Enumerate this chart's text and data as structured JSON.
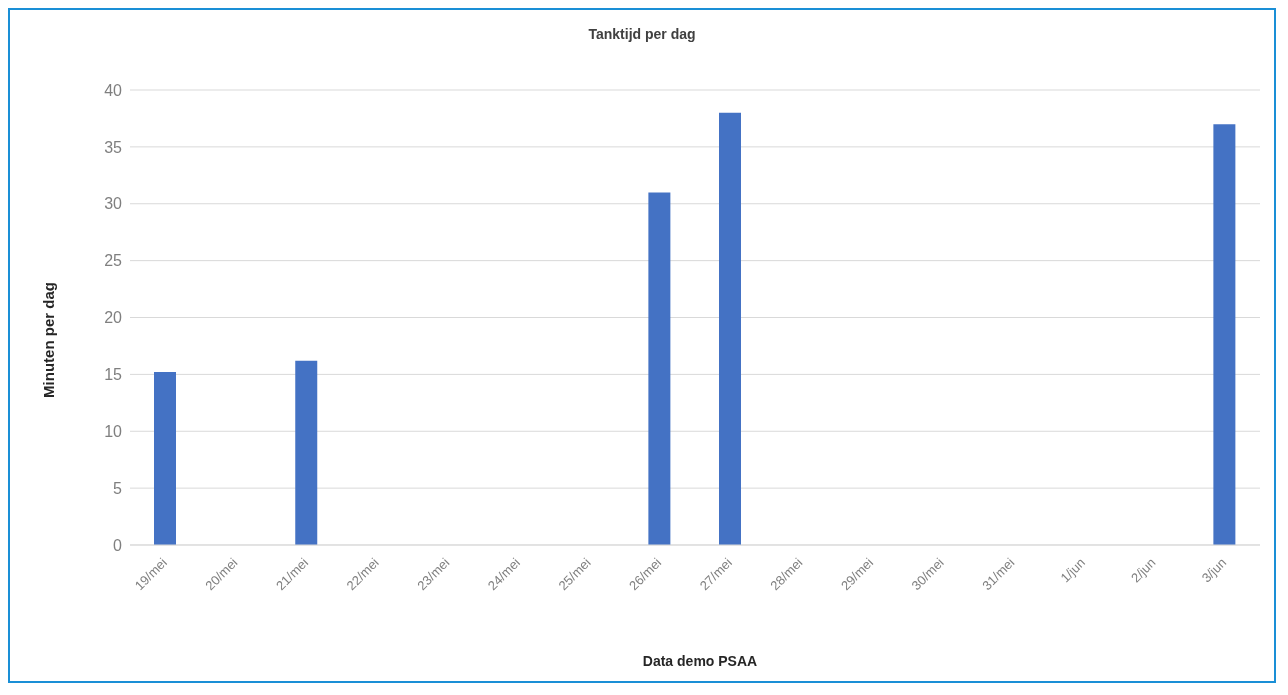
{
  "chart_data": {
    "type": "bar",
    "title": "Tanktijd per dag",
    "xlabel": "Data demo PSAA",
    "ylabel": "Minuten per dag",
    "categories": [
      "19/mei",
      "20/mei",
      "21/mei",
      "22/mei",
      "23/mei",
      "24/mei",
      "25/mei",
      "26/mei",
      "27/mei",
      "28/mei",
      "29/mei",
      "30/mei",
      "31/mei",
      "1/jun",
      "2/jun",
      "3/jun"
    ],
    "values": [
      15.2,
      null,
      16.2,
      null,
      null,
      null,
      null,
      31,
      38,
      null,
      null,
      null,
      null,
      null,
      null,
      37
    ],
    "color": "#4472c4",
    "ylim": [
      0,
      40
    ],
    "yticks": [
      0,
      5,
      10,
      15,
      20,
      25,
      30,
      35,
      40
    ],
    "grid": "y"
  }
}
